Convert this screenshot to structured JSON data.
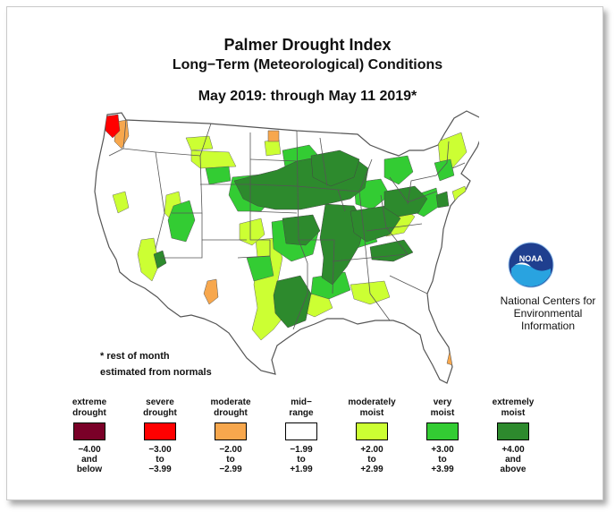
{
  "title": "Palmer Drought Index",
  "subtitle": "Long−Term (Meteorological) Conditions",
  "period": "May 2019: through May 11 2019*",
  "logo": {
    "text": "NOAA",
    "colors": {
      "dark": "#1f3f8f",
      "light": "#29a3e0"
    }
  },
  "org": {
    "line1": "National Centers for",
    "line2": "Environmental",
    "line3": "Information"
  },
  "note": {
    "line1": "* rest of month",
    "line2": "estimated from normals"
  },
  "legend": [
    {
      "cat1": "extreme",
      "cat2": "drought",
      "color": "#7a0028",
      "r1": "−4.00",
      "r2": "and",
      "r3": "below"
    },
    {
      "cat1": "severe",
      "cat2": "drought",
      "color": "#ff0000",
      "r1": "−3.00",
      "r2": "to",
      "r3": "−3.99"
    },
    {
      "cat1": "moderate",
      "cat2": "drought",
      "color": "#f7a74d",
      "r1": "−2.00",
      "r2": "to",
      "r3": "−2.99"
    },
    {
      "cat1": "mid−",
      "cat2": "range",
      "color": "#ffffff",
      "r1": "−1.99",
      "r2": "to",
      "r3": "+1.99"
    },
    {
      "cat1": "moderately",
      "cat2": "moist",
      "color": "#ccff33",
      "r1": "+2.00",
      "r2": "to",
      "r3": "+2.99"
    },
    {
      "cat1": "very",
      "cat2": "moist",
      "color": "#33cc33",
      "r1": "+3.00",
      "r2": "to",
      "r3": "+3.99"
    },
    {
      "cat1": "extremely",
      "cat2": "moist",
      "color": "#2d8a2d",
      "r1": "+4.00",
      "r2": "and",
      "r3": "above"
    }
  ],
  "map_colors": {
    "land": "#ffffff",
    "border": "#555555",
    "severe_drought": "#ff0000",
    "moderate_drought": "#f7a74d",
    "moderately_moist": "#ccff33",
    "very_moist": "#33cc33",
    "extremely_moist": "#2d8a2d"
  }
}
